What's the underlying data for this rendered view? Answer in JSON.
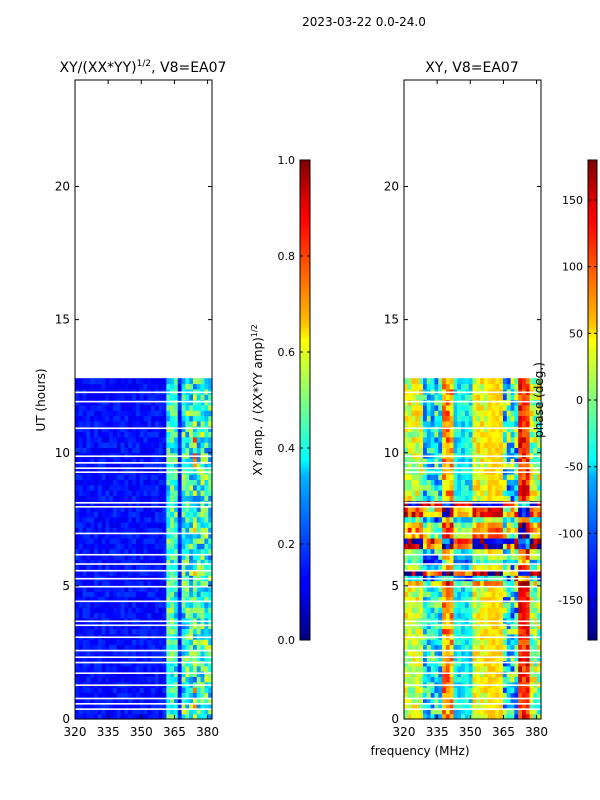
{
  "figure": {
    "suptitle": "2023-03-22 0.0-24.0",
    "xlabel": "frequency (MHz)",
    "colors": {
      "axis": "#000000",
      "background": "#ffffff",
      "gap": "#ffffff"
    }
  },
  "chart_data": [
    {
      "type": "heatmap",
      "title": "XY/(XX*YY)",
      "title_superscript": "1/2",
      "title_suffix": ", V8=EA07",
      "ylabel": "UT (hours)",
      "xlim": [
        320,
        382
      ],
      "ylim": [
        0,
        24
      ],
      "x_ticks": [
        320,
        335,
        350,
        365,
        380
      ],
      "y_ticks": [
        0,
        5,
        10,
        15,
        20
      ],
      "data_ut_range": [
        0,
        12.8
      ],
      "colorbar": {
        "label": "XY amp. / (XX*YY amp)",
        "label_superscript": "1/2",
        "range": [
          0.0,
          1.0
        ],
        "ticks": [
          "0.0",
          "0.2",
          "0.4",
          "0.6",
          "0.8",
          "1.0"
        ]
      },
      "colormap": "jet"
    },
    {
      "type": "heatmap",
      "title": "XY, V8=EA07",
      "ylabel": "",
      "xlim": [
        320,
        382
      ],
      "ylim": [
        0,
        24
      ],
      "x_ticks": [
        320,
        335,
        350,
        365,
        380
      ],
      "y_ticks": [
        0,
        5,
        10,
        15,
        20
      ],
      "data_ut_range": [
        0,
        12.8
      ],
      "colorbar": {
        "label": "phase (deg.)",
        "range": [
          -180,
          180
        ],
        "ticks": [
          "-150",
          "-100",
          "-50",
          "0",
          "50",
          "100",
          "150"
        ]
      },
      "colormap": "jet"
    }
  ]
}
